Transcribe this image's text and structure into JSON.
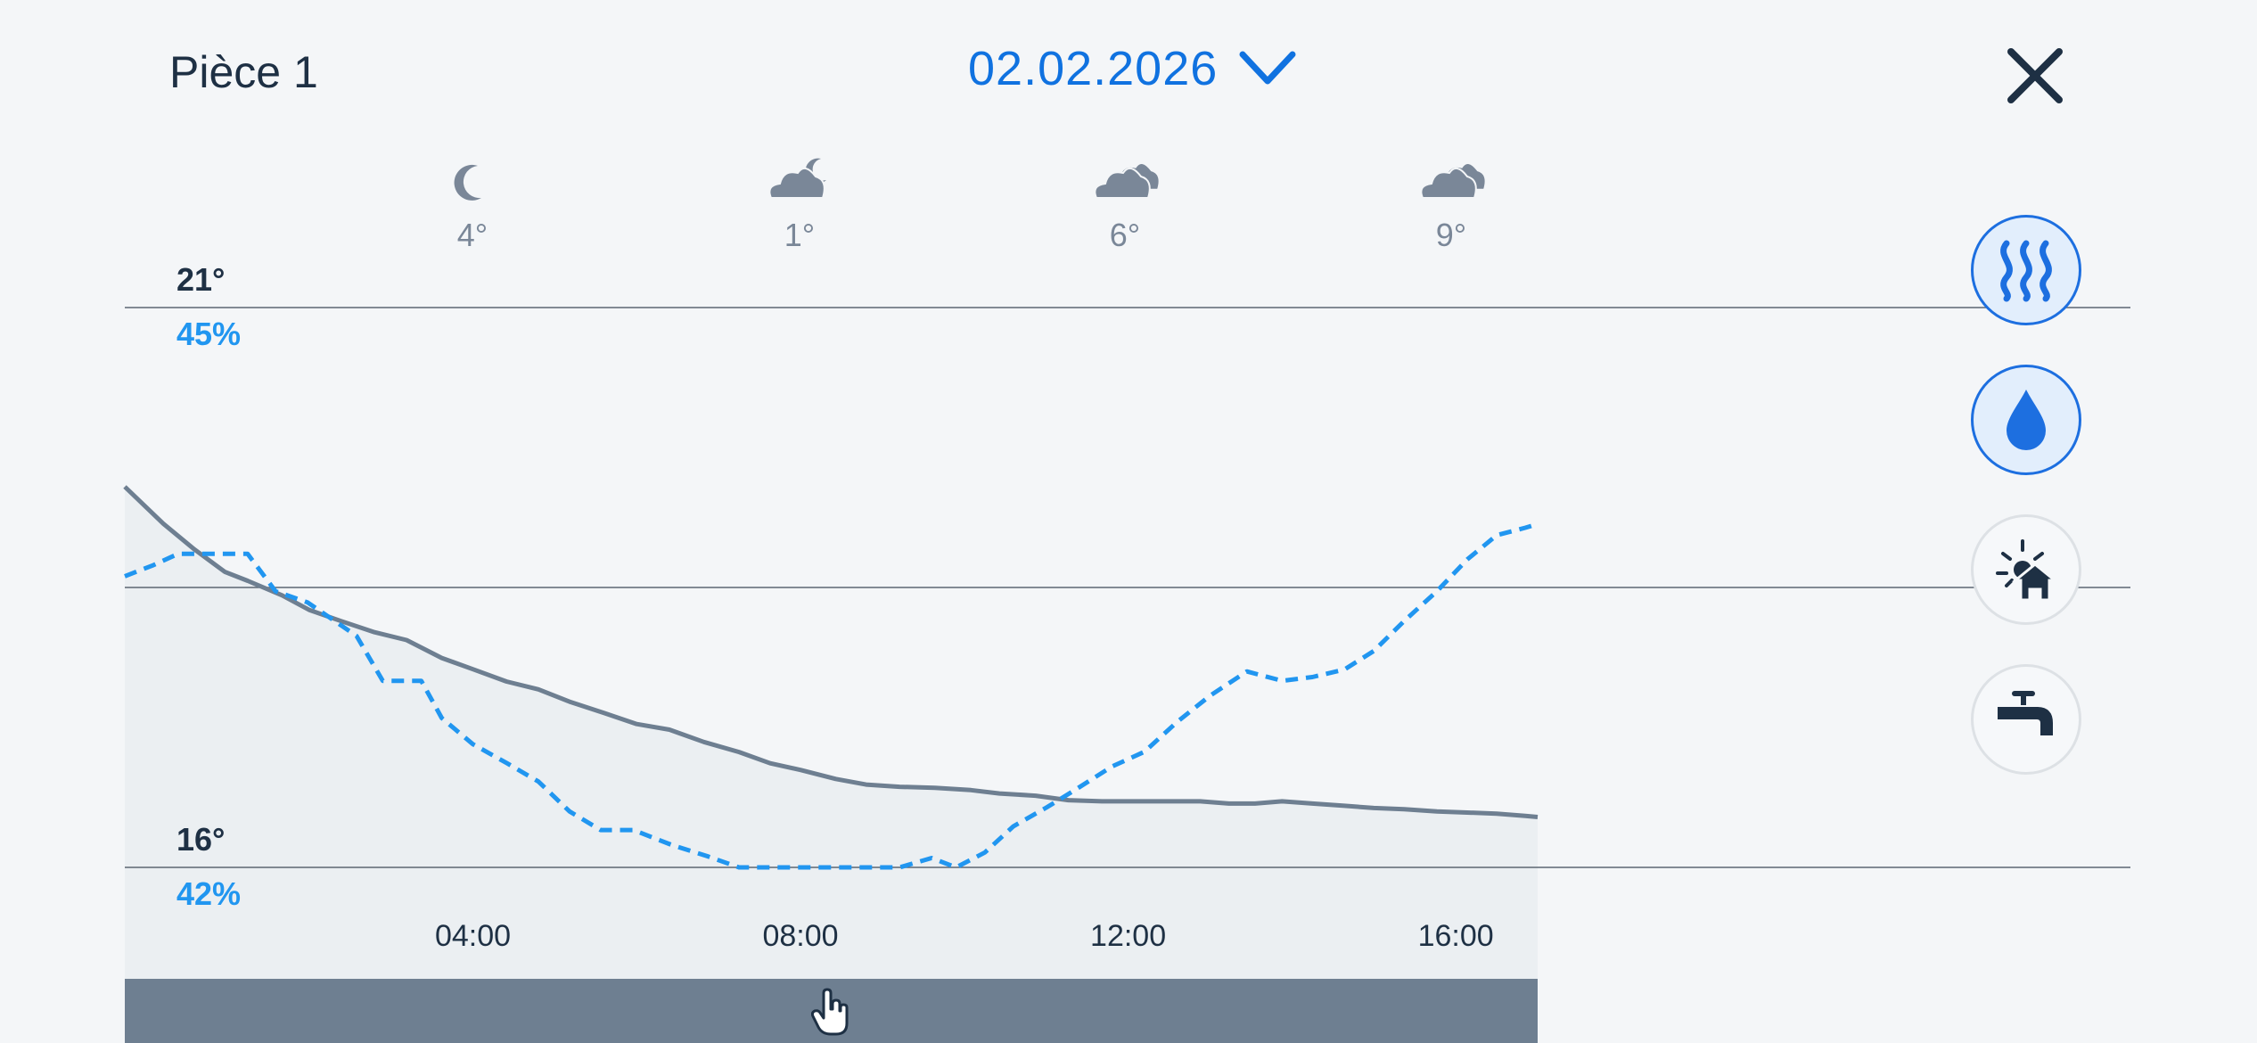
{
  "header": {
    "room": "Pièce 1",
    "date": "02.02.2026"
  },
  "weather": [
    {
      "icon": "moon-icon",
      "temp": "4°"
    },
    {
      "icon": "cloud-moon-icon",
      "temp": "1°"
    },
    {
      "icon": "clouds-icon",
      "temp": "6°"
    },
    {
      "icon": "clouds-icon",
      "temp": "9°"
    }
  ],
  "side_buttons": [
    {
      "icon": "heating-icon",
      "active": true
    },
    {
      "icon": "humidity-drop-icon",
      "active": true
    },
    {
      "icon": "sun-house-icon",
      "active": false
    },
    {
      "icon": "water-tap-icon",
      "active": false
    }
  ],
  "colors": {
    "temperature": "#6e7f91",
    "humidity": "#2196f0",
    "accent": "#1072e0",
    "text_dark": "#1e3044"
  },
  "chart_data": {
    "type": "line",
    "x_ticks": [
      "04:00",
      "08:00",
      "12:00",
      "16:00"
    ],
    "y_left": {
      "ticks": [
        "16°",
        "21°"
      ],
      "range": [
        16,
        21
      ]
    },
    "y_right": {
      "ticks": [
        "42%",
        "45%"
      ],
      "range": [
        42,
        45
      ]
    },
    "x_range_hours": [
      -0.25,
      17.0
    ],
    "grid": true,
    "series": [
      {
        "style": "solid",
        "axis": "left",
        "points": [
          [
            -0.25,
            19.4
          ],
          [
            0.22,
            19.07
          ],
          [
            0.6,
            18.84
          ],
          [
            0.97,
            18.64
          ],
          [
            1.25,
            18.56
          ],
          [
            1.67,
            18.43
          ],
          [
            2.0,
            18.3
          ],
          [
            2.39,
            18.2
          ],
          [
            2.8,
            18.1
          ],
          [
            3.19,
            18.03
          ],
          [
            3.62,
            17.87
          ],
          [
            4.0,
            17.77
          ],
          [
            4.41,
            17.66
          ],
          [
            4.8,
            17.59
          ],
          [
            5.18,
            17.48
          ],
          [
            5.6,
            17.38
          ],
          [
            6.0,
            17.28
          ],
          [
            6.4,
            17.23
          ],
          [
            6.82,
            17.12
          ],
          [
            7.25,
            17.03
          ],
          [
            7.63,
            16.93
          ],
          [
            8.0,
            16.87
          ],
          [
            8.43,
            16.79
          ],
          [
            8.8,
            16.74
          ],
          [
            9.21,
            16.72
          ],
          [
            9.64,
            16.71
          ],
          [
            10.08,
            16.69
          ],
          [
            10.43,
            16.66
          ],
          [
            10.87,
            16.64
          ],
          [
            11.27,
            16.6
          ],
          [
            11.68,
            16.59
          ],
          [
            12.07,
            16.59
          ],
          [
            12.45,
            16.59
          ],
          [
            12.88,
            16.59
          ],
          [
            13.23,
            16.57
          ],
          [
            13.55,
            16.57
          ],
          [
            13.88,
            16.59
          ],
          [
            14.25,
            16.57
          ],
          [
            14.64,
            16.55
          ],
          [
            15.0,
            16.53
          ],
          [
            15.37,
            16.52
          ],
          [
            15.77,
            16.5
          ],
          [
            16.14,
            16.49
          ],
          [
            16.5,
            16.48
          ],
          [
            16.85,
            16.46
          ],
          [
            17.0,
            16.45
          ]
        ]
      },
      {
        "style": "dashed",
        "axis": "right",
        "points": [
          [
            -0.25,
            43.56
          ],
          [
            0.1,
            43.62
          ],
          [
            0.4,
            43.68
          ],
          [
            0.75,
            43.68
          ],
          [
            1.25,
            43.68
          ],
          [
            1.59,
            43.48
          ],
          [
            1.98,
            43.42
          ],
          [
            2.58,
            43.24
          ],
          [
            2.9,
            43.0
          ],
          [
            3.37,
            43.0
          ],
          [
            3.62,
            42.8
          ],
          [
            4.0,
            42.66
          ],
          [
            4.41,
            42.56
          ],
          [
            4.8,
            42.46
          ],
          [
            5.18,
            42.3
          ],
          [
            5.56,
            42.2
          ],
          [
            5.96,
            42.2
          ],
          [
            6.43,
            42.12
          ],
          [
            6.86,
            42.06
          ],
          [
            7.25,
            42.0
          ],
          [
            7.63,
            42.0
          ],
          [
            8.0,
            42.0
          ],
          [
            8.43,
            42.0
          ],
          [
            8.8,
            42.0
          ],
          [
            9.21,
            42.0
          ],
          [
            9.6,
            42.05
          ],
          [
            9.9,
            42.0
          ],
          [
            10.25,
            42.08
          ],
          [
            10.6,
            42.22
          ],
          [
            11.0,
            42.32
          ],
          [
            11.37,
            42.42
          ],
          [
            11.8,
            42.54
          ],
          [
            12.2,
            42.62
          ],
          [
            12.6,
            42.78
          ],
          [
            13.0,
            42.92
          ],
          [
            13.45,
            43.05
          ],
          [
            13.88,
            43.0
          ],
          [
            14.25,
            43.02
          ],
          [
            14.64,
            43.06
          ],
          [
            15.0,
            43.16
          ],
          [
            15.37,
            43.32
          ],
          [
            15.77,
            43.48
          ],
          [
            16.14,
            43.65
          ],
          [
            16.5,
            43.78
          ],
          [
            16.85,
            43.82
          ],
          [
            17.0,
            43.84
          ]
        ]
      }
    ]
  }
}
